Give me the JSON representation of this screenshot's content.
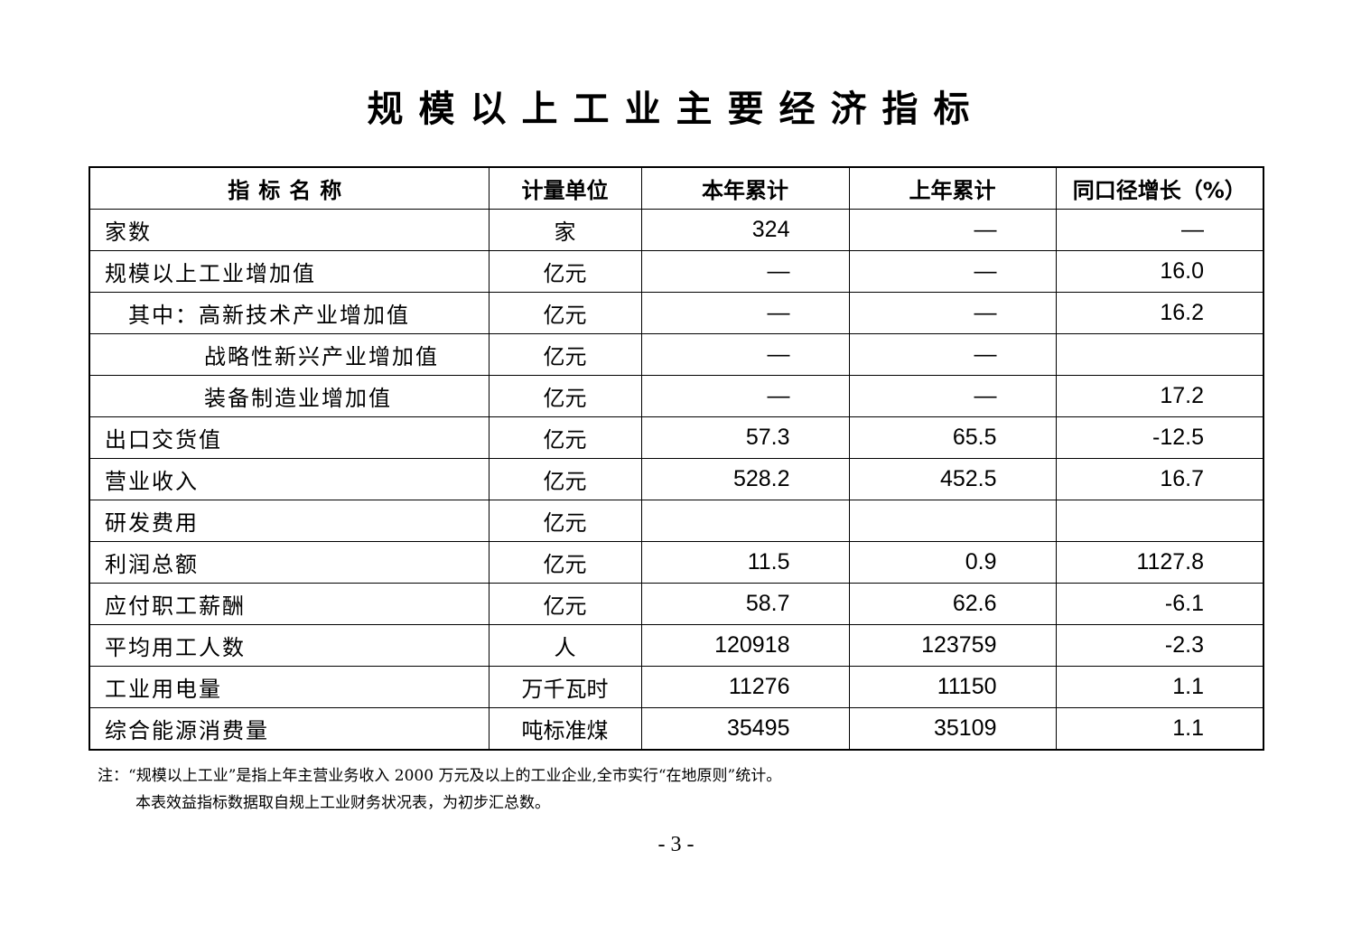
{
  "title": "规模以上工业主要经济指标",
  "table": {
    "headers": [
      "指标名称",
      "计量单位",
      "本年累计",
      "上年累计",
      "同口径增长（%）"
    ],
    "rows": [
      {
        "name": "家数",
        "indent": 0,
        "unit": "家",
        "current": "324",
        "previous": "—",
        "growth": "—"
      },
      {
        "name": "规模以上工业增加值",
        "indent": 0,
        "unit": "亿元",
        "current": "—",
        "previous": "—",
        "growth": "16.0"
      },
      {
        "name": "其中：高新技术产业增加值",
        "indent": 1,
        "unit": "亿元",
        "current": "—",
        "previous": "—",
        "growth": "16.2"
      },
      {
        "name": "战略性新兴产业增加值",
        "indent": 2,
        "unit": "亿元",
        "current": "—",
        "previous": "—",
        "growth": ""
      },
      {
        "name": "装备制造业增加值",
        "indent": 2,
        "unit": "亿元",
        "current": "—",
        "previous": "—",
        "growth": "17.2"
      },
      {
        "name": "出口交货值",
        "indent": 0,
        "unit": "亿元",
        "current": "57.3",
        "previous": "65.5",
        "growth": "-12.5"
      },
      {
        "name": "营业收入",
        "indent": 0,
        "unit": "亿元",
        "current": "528.2",
        "previous": "452.5",
        "growth": "16.7"
      },
      {
        "name": "研发费用",
        "indent": 0,
        "unit": "亿元",
        "current": "",
        "previous": "",
        "growth": ""
      },
      {
        "name": "利润总额",
        "indent": 0,
        "unit": "亿元",
        "current": "11.5",
        "previous": "0.9",
        "growth": "1127.8"
      },
      {
        "name": "应付职工薪酬",
        "indent": 0,
        "unit": "亿元",
        "current": "58.7",
        "previous": "62.6",
        "growth": "-6.1"
      },
      {
        "name": "平均用工人数",
        "indent": 0,
        "unit": "人",
        "current": "120918",
        "previous": "123759",
        "growth": "-2.3"
      },
      {
        "name": "工业用电量",
        "indent": 0,
        "unit": "万千瓦时",
        "current": "11276",
        "previous": "11150",
        "growth": "1.1"
      },
      {
        "name": "综合能源消费量",
        "indent": 0,
        "unit": "吨标准煤",
        "current": "35495",
        "previous": "35109",
        "growth": "1.1"
      }
    ]
  },
  "notes": [
    "注：“规模以上工业”是指上年主营业务收入 2000 万元及以上的工业企业,全市实行“在地原则”统计。",
    "本表效益指标数据取自规上工业财务状况表，为初步汇总数。"
  ],
  "page_number": "- 3 -"
}
